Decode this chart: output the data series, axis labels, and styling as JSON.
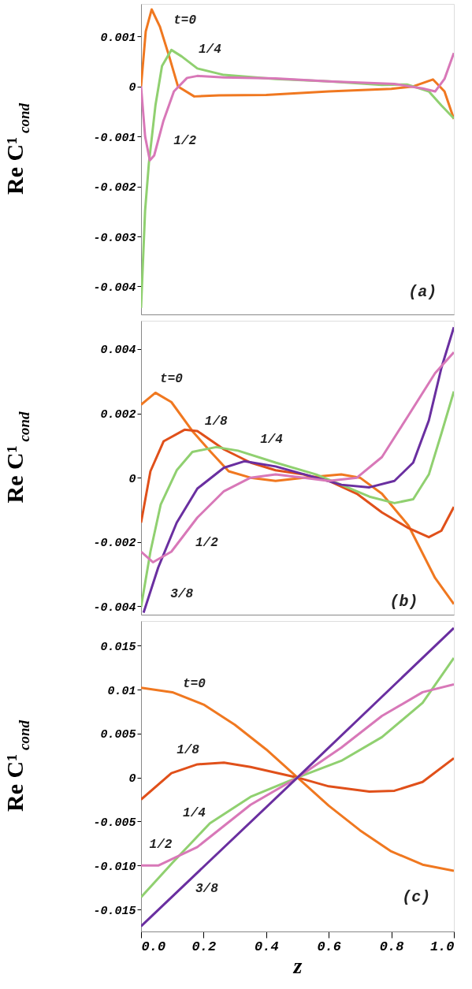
{
  "chart_data": [
    {
      "type": "line",
      "ylabel": "Re C¹$_{cond}$",
      "xlim": [
        0,
        1
      ],
      "ylim": [
        -0.00456,
        0.00165
      ],
      "yticks": [
        0.001,
        0,
        -0.001,
        -0.002,
        -0.003,
        -0.004
      ],
      "tick_labels": "y",
      "grid": false,
      "legend": false,
      "marker": "none",
      "line_style": "solid",
      "series": [
        {
          "name": "t=0",
          "color": "#f07820",
          "x": [
            0,
            0.015,
            0.034,
            0.06,
            0.09,
            0.118,
            0.17,
            0.25,
            0.4,
            0.6,
            0.8,
            0.87,
            0.933,
            0.97,
            1
          ],
          "values": [
            0,
            0.0011,
            0.00154,
            0.0012,
            0.0006,
            0,
            -0.0002,
            -0.00018,
            -0.00017,
            -0.0001,
            -5e-05,
            0,
            0.00014,
            -0.0001,
            -0.00065
          ]
        },
        {
          "name": "1/4",
          "color": "#90d070",
          "x": [
            0,
            0.013,
            0.025,
            0.046,
            0.067,
            0.097,
            0.13,
            0.18,
            0.265,
            0.43,
            0.6,
            0.77,
            0.85,
            0.92,
            0.96,
            1
          ],
          "values": [
            -0.00443,
            -0.00248,
            -0.00154,
            -0.00038,
            0.00041,
            0.00073,
            0.0006,
            0.00036,
            0.00023,
            0.00015,
            0.0001,
            3e-05,
            4e-05,
            -0.0001,
            -0.00038,
            -0.00064
          ]
        },
        {
          "name": "1/2",
          "color": "#d878b8",
          "x": [
            0,
            0.013,
            0.028,
            0.042,
            0.071,
            0.105,
            0.147,
            0.18,
            0.265,
            0.43,
            0.6,
            0.81,
            0.9,
            0.94,
            0.97,
            1
          ],
          "values": [
            0,
            -0.001,
            -0.00148,
            -0.00138,
            -0.0007,
            -0.0001,
            0.00017,
            0.00021,
            0.00018,
            0.00016,
            0.0001,
            5e-05,
            -4e-05,
            -0.0001,
            0.00015,
            0.00067
          ]
        }
      ],
      "annotations": [
        "(a)"
      ]
    },
    {
      "type": "line",
      "ylabel": "Re C¹$_{cond}$",
      "xlim": [
        0,
        1
      ],
      "ylim": [
        -0.00426,
        0.00488
      ],
      "yticks": [
        0.004,
        0.002,
        0,
        -0.002,
        -0.004
      ],
      "tick_labels": "y",
      "grid": false,
      "legend": false,
      "marker": "none",
      "line_style": "solid",
      "series": [
        {
          "name": "t=0",
          "color": "#f07820",
          "x": [
            0,
            0.046,
            0.097,
            0.164,
            0.223,
            0.28,
            0.35,
            0.43,
            0.52,
            0.64,
            0.7,
            0.77,
            0.855,
            0.94,
            1
          ],
          "values": [
            0.00227,
            0.00264,
            0.00235,
            0.00145,
            0.0008,
            0.0002,
            0,
            -0.0001,
            0,
            0.0001,
            0,
            -0.0005,
            -0.00149,
            -0.00312,
            -0.00393
          ]
        },
        {
          "name": "1/8",
          "color": "#e0501a",
          "x": [
            0,
            0.03,
            0.072,
            0.139,
            0.18,
            0.265,
            0.35,
            0.43,
            0.52,
            0.6,
            0.69,
            0.77,
            0.855,
            0.92,
            0.96,
            1
          ],
          "values": [
            -0.0014,
            0.0002,
            0.00113,
            0.00149,
            0.00145,
            0.00088,
            0.00047,
            0.00023,
            0.0001,
            -0.0001,
            -0.0005,
            -0.00108,
            -0.00157,
            -0.00185,
            -0.00165,
            -0.00091
          ]
        },
        {
          "name": "1/4",
          "color": "#90d070",
          "x": [
            0,
            0.03,
            0.063,
            0.114,
            0.164,
            0.24,
            0.31,
            0.43,
            0.56,
            0.64,
            0.73,
            0.81,
            0.87,
            0.92,
            0.96,
            1
          ],
          "values": [
            -0.00402,
            -0.0023,
            -0.00083,
            0.00023,
            0.0008,
            0.00095,
            0.00084,
            0.00047,
            0.0001,
            -0.00022,
            -0.00059,
            -0.00079,
            -0.00067,
            0.0001,
            0.00137,
            0.00268
          ]
        },
        {
          "name": "3/8",
          "color": "#6a2fa0",
          "x": [
            0.008,
            0.055,
            0.114,
            0.18,
            0.265,
            0.33,
            0.43,
            0.56,
            0.64,
            0.73,
            0.81,
            0.87,
            0.92,
            0.96,
            1
          ],
          "values": [
            -0.0042,
            -0.00279,
            -0.0014,
            -0.00034,
            0.00031,
            0.00051,
            0.00035,
            0,
            -0.00022,
            -0.0003,
            -0.0001,
            0.00047,
            0.00178,
            0.00341,
            0.00468
          ]
        },
        {
          "name": "1/2",
          "color": "#d878b8",
          "x": [
            0,
            0.038,
            0.097,
            0.18,
            0.265,
            0.35,
            0.43,
            0.52,
            0.6,
            0.69,
            0.77,
            0.855,
            0.94,
            1
          ],
          "values": [
            -0.0023,
            -0.00263,
            -0.0023,
            -0.00124,
            -0.00042,
            0,
            0.0001,
            0,
            -0.0001,
            0,
            0.00064,
            0.00194,
            0.00325,
            0.0039
          ]
        }
      ],
      "annotations": [
        "(b)"
      ]
    },
    {
      "type": "line",
      "xlabel": "z",
      "ylabel": "Re C¹$_{cond}$",
      "xlim": [
        0,
        1
      ],
      "ylim": [
        -0.0175,
        0.0178
      ],
      "xticks": [
        {
          "value": 0,
          "label": "0.0"
        },
        {
          "value": 0.2,
          "label": "0.2"
        },
        {
          "value": 0.4,
          "label": "0.4"
        },
        {
          "value": 0.6,
          "label": "0.6"
        },
        {
          "value": 0.8,
          "label": "0.8"
        },
        {
          "value": 1,
          "label": "1.0"
        }
      ],
      "yticks": [
        0.015,
        0.01,
        0.005,
        0,
        -0.005,
        {
          "value": -0.01,
          "label": "-0.010"
        },
        -0.015
      ],
      "grid": false,
      "legend": false,
      "marker": "none",
      "line_style": "solid",
      "series": [
        {
          "name": "t=0",
          "color": "#f07820",
          "x": [
            0,
            0.1,
            0.2,
            0.3,
            0.4,
            0.5,
            0.6,
            0.7,
            0.8,
            0.9,
            1
          ],
          "values": [
            0.0102,
            0.0097,
            0.0083,
            0.006,
            0.0032,
            0,
            -0.0032,
            -0.006,
            -0.0084,
            -0.0099,
            -0.0106
          ]
        },
        {
          "name": "1/8",
          "color": "#e0501a",
          "x": [
            0,
            0.097,
            0.18,
            0.265,
            0.35,
            0.5,
            0.6,
            0.73,
            0.81,
            0.9,
            1
          ],
          "values": [
            -0.0025,
            0.0005,
            0.0015,
            0.0017,
            0.0012,
            0,
            -0.001,
            -0.0016,
            -0.0015,
            -0.0005,
            0.0022
          ]
        },
        {
          "name": "1/4",
          "color": "#90d070",
          "x": [
            0,
            0.1,
            0.22,
            0.35,
            0.5,
            0.64,
            0.77,
            0.9,
            1
          ],
          "values": [
            -0.0136,
            -0.0097,
            -0.0052,
            -0.0022,
            0,
            0.0019,
            0.0046,
            0.0085,
            0.0136
          ]
        },
        {
          "name": "1/2",
          "color": "#d878b8",
          "x": [
            0,
            0.055,
            0.18,
            0.35,
            0.5,
            0.64,
            0.77,
            0.9,
            1
          ],
          "values": [
            -0.01,
            -0.01,
            -0.0079,
            -0.0031,
            0,
            0.0034,
            0.007,
            0.0097,
            0.0106
          ]
        },
        {
          "name": "3/8",
          "color": "#6a2fa0",
          "x": [
            0,
            0.5,
            1
          ],
          "values": [
            -0.0169,
            0,
            0.017
          ]
        }
      ],
      "annotations": [
        "(c)"
      ]
    }
  ]
}
